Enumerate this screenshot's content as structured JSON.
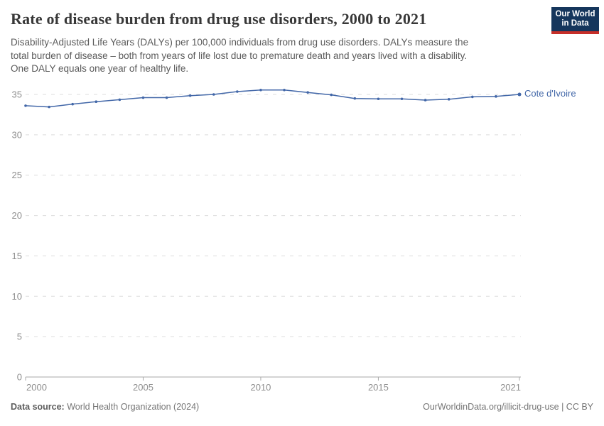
{
  "header": {
    "title": "Rate of disease burden from drug use disorders, 2000 to 2021",
    "subtitle_lines": [
      "Disability-Adjusted Life Years (DALYs) per 100,000 individuals from drug use disorders. DALYs measure the",
      "total burden of disease – both from years of life lost due to premature death and years lived with a disability.",
      "One DALY equals one year of healthy life."
    ],
    "logo": {
      "line1": "Our World",
      "line2": "in Data",
      "bg_color": "#15365c",
      "accent_color": "#c62f29"
    }
  },
  "chart_data": {
    "type": "line",
    "title": "Rate of disease burden from drug use disorders, 2000 to 2021",
    "x": [
      2000,
      2001,
      2002,
      2003,
      2004,
      2005,
      2006,
      2007,
      2008,
      2009,
      2010,
      2011,
      2012,
      2013,
      2014,
      2015,
      2016,
      2017,
      2018,
      2019,
      2020,
      2021
    ],
    "series": [
      {
        "name": "Cote d'Ivoire",
        "color": "#4267a8",
        "values": [
          33.6,
          33.45,
          33.8,
          34.1,
          34.35,
          34.6,
          34.6,
          34.85,
          35.0,
          35.35,
          35.55,
          35.55,
          35.25,
          34.95,
          34.5,
          34.45,
          34.45,
          34.3,
          34.4,
          34.7,
          34.75,
          35.0
        ]
      }
    ],
    "xticks": [
      2000,
      2005,
      2010,
      2015,
      2021
    ],
    "yticks": [
      0,
      5,
      10,
      15,
      20,
      25,
      30,
      35
    ],
    "ylim": [
      0,
      35
    ],
    "xlabel": "",
    "ylabel": "",
    "grid": "horizontal-dashed",
    "legend_position": "line-end-label",
    "grid_color": "#dcdcdc",
    "axis_color": "#a8a8a8"
  },
  "footer": {
    "source_label": "Data source:",
    "source_value": " World Health Organization (2024)",
    "link_text": "OurWorldinData.org/illicit-drug-use | CC BY"
  }
}
